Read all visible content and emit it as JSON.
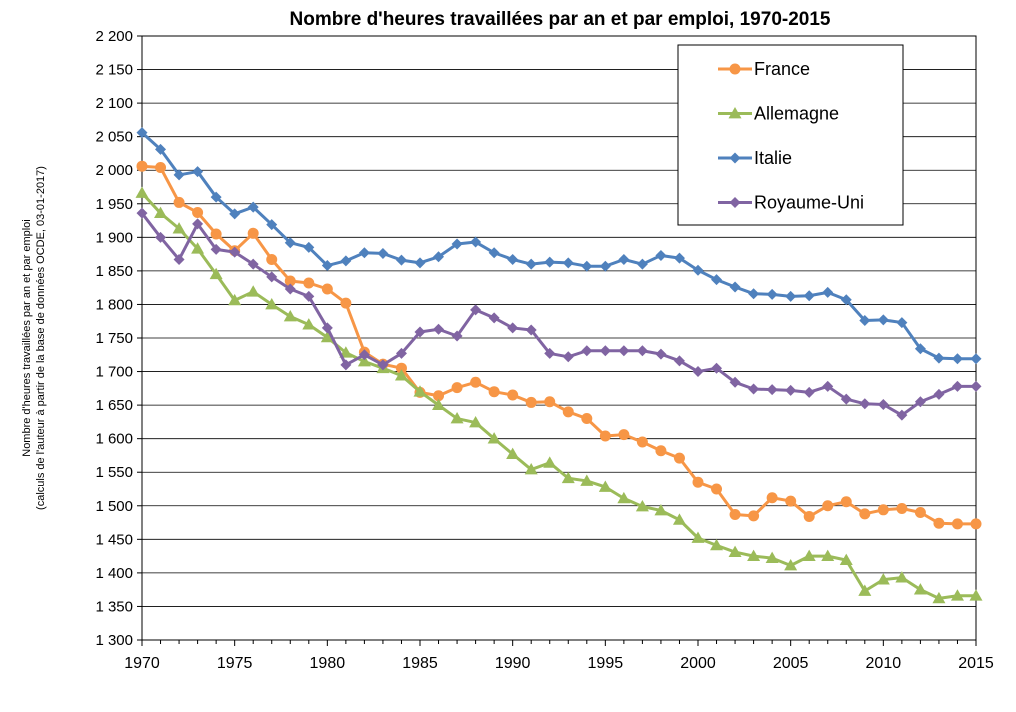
{
  "chart_data": {
    "type": "line",
    "title": "Nombre d'heures travaillées par an et par emploi, 1970-2015",
    "ylabel": "Nombre d'heures travaillées par an et par emploi",
    "ylabel_line2": "(calculs de l'auteur à partir de la base de données OCDE, 03-01-2017)",
    "xlabel": "",
    "xlim": [
      1970,
      2015
    ],
    "ylim": [
      1300,
      2200
    ],
    "x_ticks": [
      "1970",
      "1975",
      "1980",
      "1985",
      "1990",
      "1995",
      "2000",
      "2005",
      "2010",
      "2015"
    ],
    "y_ticks": [
      "1 300",
      "1 350",
      "1 400",
      "1 450",
      "1 500",
      "1 550",
      "1 600",
      "1 650",
      "1 700",
      "1 750",
      "1 800",
      "1 850",
      "1 900",
      "1 950",
      "2 000",
      "2 050",
      "2 100",
      "2 150",
      "2 200"
    ],
    "grid": "horizontal",
    "legend_position": "top-right",
    "x": [
      1970,
      1971,
      1972,
      1973,
      1974,
      1975,
      1976,
      1977,
      1978,
      1979,
      1980,
      1981,
      1982,
      1983,
      1984,
      1985,
      1986,
      1987,
      1988,
      1989,
      1990,
      1991,
      1992,
      1993,
      1994,
      1995,
      1996,
      1997,
      1998,
      1999,
      2000,
      2001,
      2002,
      2003,
      2004,
      2005,
      2006,
      2007,
      2008,
      2009,
      2010,
      2011,
      2012,
      2013,
      2014,
      2015
    ],
    "series": [
      {
        "name": "France",
        "color": "#f79646",
        "marker": "circle",
        "values": [
          2006,
          2004,
          1952,
          1937,
          1905,
          1880,
          1906,
          1867,
          1835,
          1832,
          1823,
          1802,
          1729,
          1711,
          1705,
          1669,
          1664,
          1676,
          1684,
          1670,
          1665,
          1654,
          1655,
          1640,
          1630,
          1604,
          1606,
          1595,
          1582,
          1571,
          1535,
          1525,
          1487,
          1485,
          1512,
          1507,
          1484,
          1500,
          1506,
          1488,
          1494,
          1496,
          1490,
          1474,
          1473,
          1473
        ]
      },
      {
        "name": "Allemagne",
        "color": "#9bbb59",
        "marker": "triangle",
        "values": [
          1966,
          1936,
          1913,
          1883,
          1845,
          1806,
          1819,
          1800,
          1782,
          1770,
          1751,
          1728,
          1715,
          1705,
          1694,
          1670,
          1650,
          1630,
          1624,
          1600,
          1577,
          1554,
          1564,
          1541,
          1537,
          1528,
          1511,
          1499,
          1493,
          1479,
          1452,
          1441,
          1431,
          1425,
          1422,
          1411,
          1425,
          1425,
          1419,
          1373,
          1390,
          1393,
          1375,
          1362,
          1366,
          1366
        ]
      },
      {
        "name": "Italie",
        "color": "#4f81bd",
        "marker": "diamond",
        "values": [
          2056,
          2031,
          1993,
          1998,
          1960,
          1935,
          1945,
          1919,
          1892,
          1885,
          1858,
          1865,
          1877,
          1876,
          1866,
          1862,
          1871,
          1890,
          1893,
          1877,
          1867,
          1860,
          1863,
          1862,
          1857,
          1857,
          1867,
          1860,
          1873,
          1869,
          1851,
          1837,
          1826,
          1816,
          1815,
          1812,
          1813,
          1818,
          1807,
          1776,
          1777,
          1773,
          1734,
          1720,
          1719,
          1719
        ]
      },
      {
        "name": "Royaume-Uni",
        "color": "#8064a2",
        "marker": "diamond",
        "values": [
          1936,
          1900,
          1867,
          1920,
          1882,
          1878,
          1860,
          1841,
          1823,
          1812,
          1765,
          1710,
          1725,
          1710,
          1727,
          1759,
          1763,
          1753,
          1792,
          1780,
          1765,
          1762,
          1727,
          1722,
          1731,
          1731,
          1731,
          1731,
          1726,
          1716,
          1700,
          1705,
          1684,
          1674,
          1673,
          1672,
          1669,
          1678,
          1659,
          1652,
          1651,
          1635,
          1655,
          1666,
          1678,
          1678
        ]
      }
    ]
  }
}
